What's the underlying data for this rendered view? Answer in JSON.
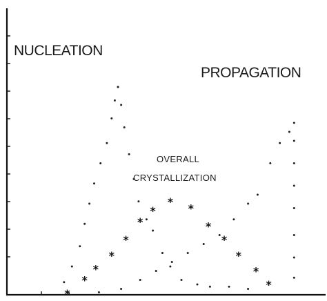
{
  "chart_data": {
    "type": "scatter",
    "title": "",
    "xlabel": "",
    "ylabel": "",
    "xlim": [
      0,
      100
    ],
    "ylim": [
      0,
      100
    ],
    "grid": false,
    "legend": "none",
    "annotations": {
      "nucleation": "NUCLEATION",
      "propagation": "PROPAGATION",
      "overall_line1": "OVERALL",
      "overall_line2": "CRYSTALLIZATION"
    },
    "series": [
      {
        "marker": "dot",
        "points": [
          [
            18,
            5
          ],
          [
            20.5,
            12
          ],
          [
            23,
            21
          ],
          [
            24.5,
            31
          ],
          [
            26,
            40
          ],
          [
            27.5,
            49
          ],
          [
            29.5,
            58
          ],
          [
            31.5,
            67
          ],
          [
            33,
            78
          ],
          [
            34,
            86
          ],
          [
            35,
            92
          ]
        ]
      },
      {
        "marker": "dot",
        "points": [
          [
            35,
            92
          ],
          [
            36,
            84
          ],
          [
            37,
            74
          ],
          [
            38.5,
            62
          ],
          [
            40,
            51
          ],
          [
            41.5,
            41
          ],
          [
            44,
            33
          ],
          [
            46,
            28
          ],
          [
            49,
            18
          ],
          [
            51.5,
            12
          ],
          [
            55,
            6
          ],
          [
            60,
            4
          ],
          [
            64,
            3
          ],
          [
            70,
            3
          ],
          [
            76,
            2
          ]
        ]
      },
      {
        "marker": "dot",
        "points": [
          [
            19,
            0.5
          ],
          [
            29,
            0.5
          ],
          [
            36,
            2
          ],
          [
            42,
            6
          ],
          [
            47,
            10
          ],
          [
            52,
            14
          ],
          [
            57,
            18
          ],
          [
            62,
            22
          ],
          [
            67,
            26
          ],
          [
            71.5,
            33
          ],
          [
            76,
            40
          ],
          [
            79,
            44
          ],
          [
            83,
            58
          ],
          [
            86,
            67
          ],
          [
            89,
            72
          ],
          [
            90.5,
            76
          ],
          [
            90.5,
            68
          ],
          [
            90.5,
            58
          ],
          [
            90.5,
            48
          ],
          [
            90.5,
            38
          ],
          [
            90.5,
            26
          ],
          [
            90.5,
            16
          ],
          [
            90.5,
            7
          ]
        ]
      },
      {
        "marker": "star",
        "points": [
          [
            19,
            0
          ],
          [
            24.5,
            6
          ],
          [
            28,
            11
          ],
          [
            33,
            17
          ],
          [
            37.5,
            24
          ],
          [
            42,
            32
          ],
          [
            46,
            37
          ],
          [
            51.5,
            41
          ],
          [
            58,
            38
          ],
          [
            63.5,
            30
          ],
          [
            68.5,
            24
          ],
          [
            73,
            17
          ],
          [
            78.5,
            10
          ],
          [
            82.5,
            4
          ]
        ]
      }
    ]
  }
}
